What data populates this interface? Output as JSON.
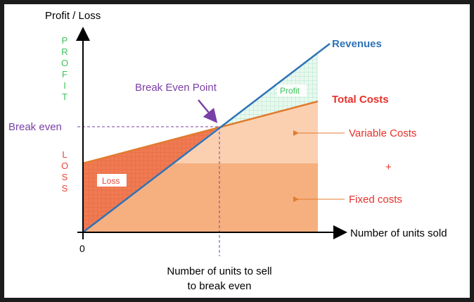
{
  "labels": {
    "y_axis_title": "Profit / Loss",
    "profit_vertical": "PROFIT",
    "loss_vertical": "LOSS",
    "break_even_value": "Break even",
    "break_even_point": "Break Even Point",
    "profit_area": "Profit",
    "loss_area": "Loss",
    "revenues": "Revenues",
    "total_costs": "Total Costs",
    "variable_costs": "Variable Costs",
    "plus": "+",
    "fixed_costs": "Fixed costs",
    "x_axis_title": "Number of units sold",
    "origin": "0",
    "units_line1": "Number of units to sell",
    "units_line2": "to break even"
  },
  "colors": {
    "revenue_line": "#2f73b8",
    "cost_line": "#e07b2e",
    "fixed_area": "#f6b07f",
    "variable_area": "#fbd0b1",
    "loss_area": "#f07a52",
    "profit_area": "#d4f2e0",
    "profit_text": "#3cc45a",
    "loss_text": "#e8463a",
    "purple": "#7a3fa6",
    "red": "#e8302a",
    "blue": "#2f73b8"
  }
}
